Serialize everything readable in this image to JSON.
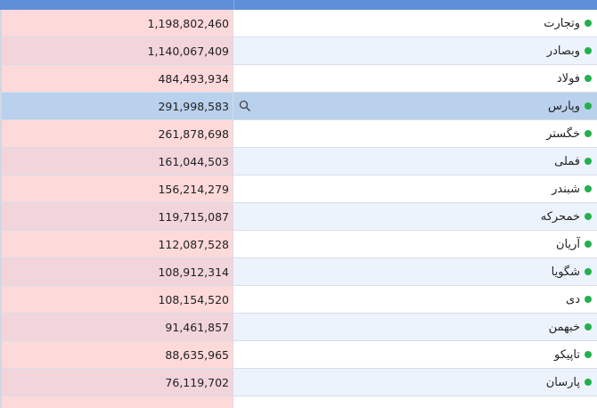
{
  "colors": {
    "header": "#5f8fd9",
    "value_cell": "#fdd9da",
    "value_cell_alt": "#f2d4db",
    "row_alt": "#edf3fd",
    "selected_row": "#b9d1ec",
    "status_dot": "#22b14c"
  },
  "icons": {
    "row_status": "green-dot-icon",
    "selected_action": "search-icon"
  },
  "rows": [
    {
      "name": "وتجارت",
      "value": "1,198,802,460"
    },
    {
      "name": "وبصادر",
      "value": "1,140,067,409"
    },
    {
      "name": "فولاد",
      "value": "484,493,934"
    },
    {
      "name": "وپارس",
      "value": "291,998,583",
      "selected": true
    },
    {
      "name": "خگستر",
      "value": "261,878,698"
    },
    {
      "name": "فملی",
      "value": "161,044,503"
    },
    {
      "name": "شبندر",
      "value": "156,214,279"
    },
    {
      "name": "خمحرکه",
      "value": "119,715,087"
    },
    {
      "name": "آریان",
      "value": "112,087,528"
    },
    {
      "name": "شگویا",
      "value": "108,912,314"
    },
    {
      "name": "دی",
      "value": "108,154,520"
    },
    {
      "name": "خبهمن",
      "value": "91,461,857"
    },
    {
      "name": "تاپیکو",
      "value": "88,635,965"
    },
    {
      "name": "پارسان",
      "value": "76,119,702"
    }
  ]
}
